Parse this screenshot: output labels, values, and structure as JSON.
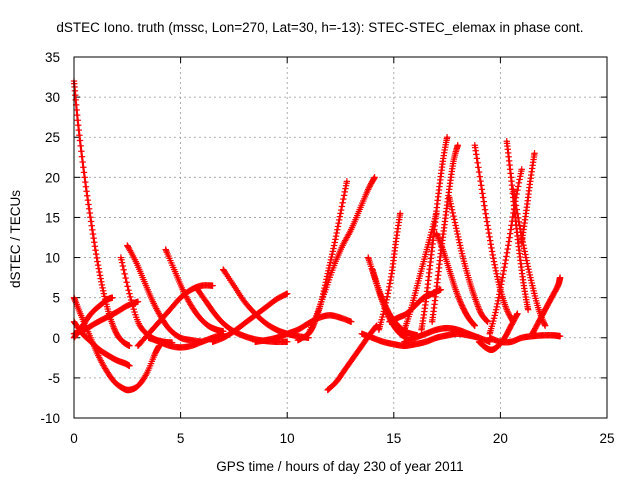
{
  "chart_data": {
    "type": "scatter",
    "title": "dSTEC Iono. truth (mssc, Lon=270, Lat=30, h=-13): STEC-STEC_elemax in phase cont.",
    "xlabel": "GPS time / hours of day 230 of year 2011",
    "ylabel": "dSTEC  / TECUs",
    "xlim": [
      0,
      25
    ],
    "ylim": [
      -10,
      35
    ],
    "xticks": [
      0,
      5,
      10,
      15,
      20,
      25
    ],
    "yticks": [
      -10,
      -5,
      0,
      5,
      10,
      15,
      20,
      25,
      30,
      35
    ],
    "grid": true,
    "marker": "plus",
    "color": "#ff0000",
    "series": [
      {
        "x": [
          0.0,
          0.2,
          0.5,
          0.8,
          1.1,
          1.4,
          1.7,
          2.0,
          2.3,
          2.6
        ],
        "y": [
          32.0,
          26.5,
          20.0,
          14.5,
          9.5,
          5.5,
          2.5,
          0.5,
          -0.5,
          -1.0
        ]
      },
      {
        "x": [
          0.0,
          0.3,
          0.7,
          1.1,
          1.5,
          1.9,
          2.3,
          2.6,
          3.0,
          3.4,
          3.8,
          4.0
        ],
        "y": [
          5.0,
          3.0,
          0.5,
          -2.0,
          -4.0,
          -5.5,
          -6.3,
          -6.5,
          -6.0,
          -4.5,
          -2.0,
          -1.0
        ]
      },
      {
        "x": [
          0.0,
          0.4,
          0.8,
          1.2,
          1.6,
          2.0,
          2.4,
          2.6
        ],
        "y": [
          2.0,
          0.5,
          -0.5,
          -1.5,
          -2.2,
          -2.8,
          -3.2,
          -3.5
        ]
      },
      {
        "x": [
          0.0,
          0.4,
          0.8,
          1.2,
          1.6,
          1.8
        ],
        "y": [
          0.0,
          1.5,
          3.0,
          4.0,
          4.8,
          5.0
        ]
      },
      {
        "x": [
          0.0,
          0.5,
          1.0,
          1.5,
          2.0,
          2.5,
          3.0
        ],
        "y": [
          0.5,
          1.0,
          1.8,
          2.5,
          3.2,
          4.0,
          4.5
        ]
      },
      {
        "x": [
          2.2,
          2.6,
          3.0,
          3.4,
          3.8,
          4.2,
          4.6
        ],
        "y": [
          10.0,
          5.5,
          2.0,
          0.5,
          -0.2,
          -0.5,
          -0.6
        ]
      },
      {
        "x": [
          2.5,
          2.9,
          3.3,
          3.7,
          4.1,
          4.5,
          5.0,
          5.5,
          6.0
        ],
        "y": [
          11.5,
          9.5,
          7.0,
          4.5,
          2.5,
          1.0,
          0.0,
          -0.3,
          -0.5
        ]
      },
      {
        "x": [
          4.3,
          4.7,
          5.1,
          5.5,
          5.9,
          6.3,
          6.7,
          7.0
        ],
        "y": [
          11.0,
          8.5,
          6.0,
          4.0,
          2.5,
          1.5,
          1.0,
          0.8
        ]
      },
      {
        "x": [
          5.8,
          6.2,
          6.6,
          7.0,
          7.5,
          8.0,
          8.5,
          9.0,
          9.5,
          10.0
        ],
        "y": [
          6.0,
          4.5,
          3.0,
          1.8,
          0.8,
          0.2,
          -0.2,
          -0.4,
          -0.5,
          -0.5
        ]
      },
      {
        "x": [
          7.0,
          7.5,
          8.0,
          8.5,
          9.0,
          9.5,
          10.0,
          10.5,
          11.0
        ],
        "y": [
          8.5,
          6.5,
          4.5,
          3.0,
          1.8,
          1.0,
          0.5,
          0.2,
          0.0
        ]
      },
      {
        "x": [
          3.5,
          4.0,
          4.5,
          5.0,
          5.5,
          6.0,
          6.5,
          7.0
        ],
        "y": [
          0.0,
          -0.5,
          -1.0,
          -1.2,
          -1.0,
          -0.5,
          0.0,
          0.5
        ]
      },
      {
        "x": [
          3.0,
          3.5,
          4.0,
          4.5,
          5.0,
          5.5,
          6.0,
          6.5
        ],
        "y": [
          -1.0,
          0.5,
          2.0,
          3.5,
          5.0,
          6.0,
          6.5,
          6.5
        ]
      },
      {
        "x": [
          6.5,
          7.0,
          7.5,
          8.0,
          8.5,
          9.0,
          9.5,
          10.0
        ],
        "y": [
          -0.5,
          0.0,
          0.8,
          1.8,
          2.8,
          3.8,
          4.8,
          5.5
        ]
      },
      {
        "x": [
          8.5,
          9.0,
          9.5,
          10.0,
          10.5,
          11.0,
          11.5,
          12.0,
          12.5,
          13.0
        ],
        "y": [
          -0.5,
          -0.3,
          0.0,
          0.5,
          1.0,
          1.8,
          2.5,
          2.8,
          2.5,
          2.0
        ]
      },
      {
        "x": [
          10.5,
          11.0,
          11.3,
          11.6,
          11.9,
          12.2,
          12.5,
          12.8
        ],
        "y": [
          -0.3,
          0.5,
          2.0,
          4.5,
          8.0,
          11.5,
          15.5,
          19.5
        ]
      },
      {
        "x": [
          11.0,
          11.4,
          11.8,
          12.2,
          12.6,
          13.0,
          13.4,
          13.8,
          14.1
        ],
        "y": [
          0.5,
          3.0,
          6.0,
          9.0,
          11.5,
          13.5,
          16.0,
          18.5,
          20.0
        ]
      },
      {
        "x": [
          11.9,
          12.3,
          12.7,
          13.1,
          13.5,
          13.9,
          14.2
        ],
        "y": [
          -6.5,
          -5.5,
          -4.0,
          -2.5,
          -1.0,
          0.5,
          1.5
        ]
      },
      {
        "x": [
          13.8,
          14.1,
          14.4,
          14.7,
          15.0,
          15.3,
          15.6
        ],
        "y": [
          10.0,
          7.5,
          5.0,
          3.0,
          1.5,
          0.5,
          0.0
        ]
      },
      {
        "x": [
          14.0,
          14.3,
          14.6,
          14.9,
          15.2,
          15.5,
          15.8,
          16.1
        ],
        "y": [
          8.5,
          6.0,
          4.0,
          2.5,
          1.5,
          0.8,
          0.5,
          0.3
        ]
      },
      {
        "x": [
          14.3,
          14.6,
          14.9,
          15.1,
          15.3
        ],
        "y": [
          1.0,
          4.0,
          8.0,
          12.0,
          15.5
        ]
      },
      {
        "x": [
          14.8,
          15.2,
          15.6,
          16.0,
          16.4,
          16.8,
          17.2
        ],
        "y": [
          2.0,
          2.5,
          3.0,
          4.0,
          5.0,
          5.5,
          6.0
        ]
      },
      {
        "x": [
          15.5,
          15.8,
          16.1,
          16.4,
          16.7,
          17.0
        ],
        "y": [
          1.0,
          3.5,
          6.5,
          9.5,
          12.5,
          15.5
        ]
      },
      {
        "x": [
          16.3,
          16.5,
          16.7,
          16.9,
          17.1,
          17.3,
          17.5
        ],
        "y": [
          1.0,
          4.5,
          9.0,
          13.5,
          18.0,
          22.0,
          25.0
        ]
      },
      {
        "x": [
          16.8,
          17.0,
          17.2,
          17.4,
          17.6,
          17.8,
          18.0
        ],
        "y": [
          2.0,
          6.0,
          10.5,
          14.5,
          18.5,
          22.0,
          24.0
        ]
      },
      {
        "x": [
          17.0,
          17.3,
          17.6,
          17.9,
          18.2,
          18.5,
          18.8
        ],
        "y": [
          13.0,
          11.0,
          8.5,
          6.0,
          4.0,
          2.5,
          1.5
        ]
      },
      {
        "x": [
          17.6,
          17.9,
          18.2,
          18.5,
          18.8,
          19.1,
          19.4
        ],
        "y": [
          17.5,
          14.0,
          10.5,
          7.5,
          5.0,
          3.0,
          2.0
        ]
      },
      {
        "x": [
          18.8,
          19.1,
          19.4,
          19.7,
          20.0,
          20.3,
          20.6
        ],
        "y": [
          24.0,
          19.0,
          14.0,
          9.5,
          6.0,
          3.5,
          2.0
        ]
      },
      {
        "x": [
          19.0,
          19.3,
          19.6,
          19.9,
          20.2,
          20.5,
          20.8
        ],
        "y": [
          -0.5,
          -1.2,
          -1.5,
          -1.0,
          0.0,
          1.5,
          3.0
        ]
      },
      {
        "x": [
          19.5,
          19.8,
          20.1,
          20.4,
          20.7,
          21.0
        ],
        "y": [
          0.5,
          3.5,
          7.5,
          12.0,
          17.0,
          21.0
        ]
      },
      {
        "x": [
          20.3,
          20.5,
          20.7,
          20.9,
          21.1,
          21.3
        ],
        "y": [
          24.5,
          20.0,
          15.0,
          10.5,
          6.5,
          3.5
        ]
      },
      {
        "x": [
          20.6,
          20.9,
          21.2,
          21.5,
          21.8,
          22.1
        ],
        "y": [
          18.5,
          14.0,
          10.0,
          6.5,
          3.5,
          1.5
        ]
      },
      {
        "x": [
          21.0,
          21.2,
          21.4,
          21.6
        ],
        "y": [
          12.0,
          15.5,
          19.5,
          23.0
        ]
      },
      {
        "x": [
          19.5,
          20.0,
          20.5,
          21.0,
          21.5,
          22.0,
          22.5,
          22.8
        ],
        "y": [
          0.0,
          -0.5,
          -0.5,
          0.0,
          0.2,
          0.3,
          0.3,
          0.2
        ]
      },
      {
        "x": [
          21.5,
          21.8,
          22.1,
          22.4,
          22.7,
          22.8
        ],
        "y": [
          0.5,
          2.0,
          3.5,
          5.0,
          6.5,
          7.5
        ]
      },
      {
        "x": [
          13.5,
          14.0,
          14.5,
          15.0,
          15.5,
          16.0,
          16.5,
          17.0,
          17.5,
          18.0,
          18.5,
          19.0
        ],
        "y": [
          0.5,
          0.0,
          -0.5,
          -0.8,
          -1.0,
          -0.8,
          -0.5,
          0.0,
          0.3,
          0.5,
          0.3,
          0.0
        ]
      },
      {
        "x": [
          15.5,
          16.0,
          16.5,
          17.0,
          17.5,
          18.0,
          18.5,
          19.0,
          19.5
        ],
        "y": [
          -0.5,
          0.0,
          0.5,
          1.0,
          1.2,
          1.0,
          0.5,
          0.0,
          -0.5
        ]
      }
    ]
  }
}
